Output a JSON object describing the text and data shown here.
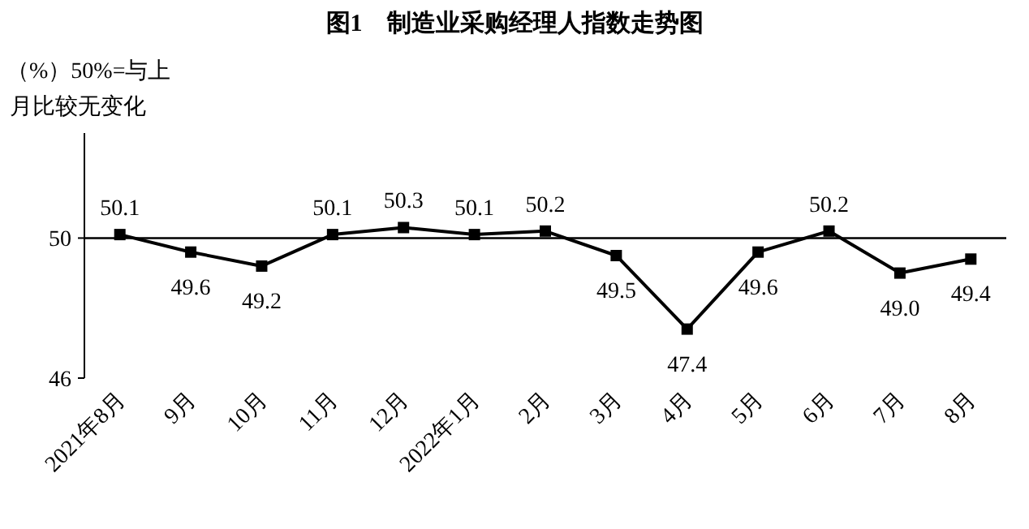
{
  "chart_data": {
    "type": "line",
    "title": "图1　制造业采购经理人指数走势图",
    "ylabel": "（%）50%=与上月比较无变化",
    "categories": [
      "2021年8月",
      "9月",
      "10月",
      "11月",
      "12月",
      "2022年1月",
      "2月",
      "3月",
      "4月",
      "5月",
      "6月",
      "7月",
      "8月"
    ],
    "series": [
      {
        "color": "#000000",
        "values": [
          50.1,
          49.6,
          49.2,
          50.1,
          50.3,
          50.1,
          50.2,
          49.5,
          47.4,
          49.6,
          50.2,
          49.0,
          49.4
        ],
        "value_labels": [
          "50.1",
          "49.6",
          "49.2",
          "50.1",
          "50.3",
          "50.1",
          "50.2",
          "49.5",
          "47.4",
          "49.6",
          "50.2",
          "49.0",
          "49.4"
        ]
      }
    ],
    "ylim": [
      46,
      53
    ],
    "yticks": [
      46,
      50
    ],
    "ref_lines": [
      {
        "axis": "y",
        "value": 50,
        "color": "#000000"
      }
    ],
    "marker": "square",
    "line_style": "solid"
  }
}
